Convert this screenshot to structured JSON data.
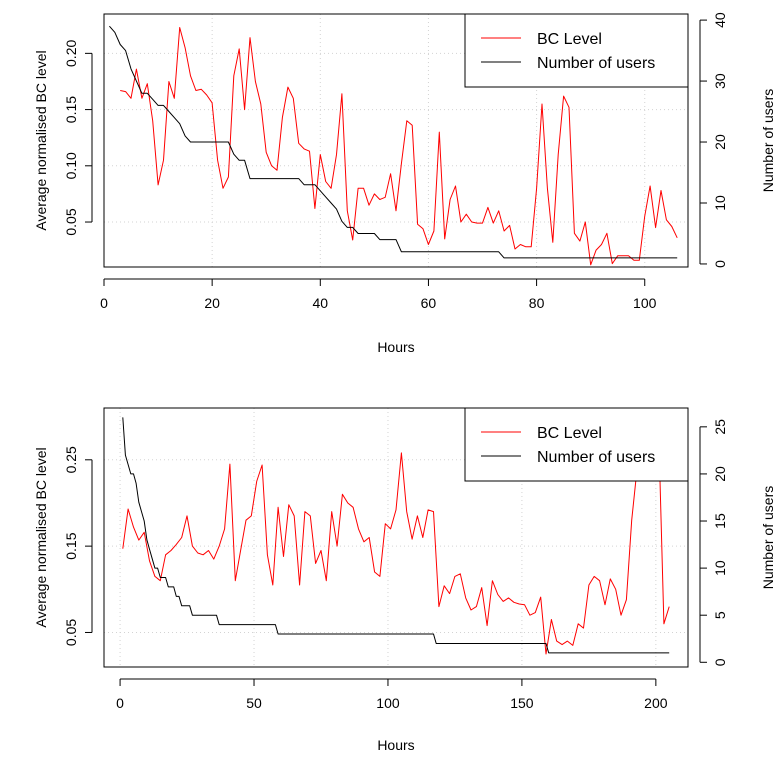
{
  "chart_data": [
    {
      "type": "line",
      "xlabel": "Hours",
      "ylabel": "Average normalised BC level",
      "y2label": "Number of users",
      "xlim": [
        0,
        108
      ],
      "ylim": [
        0.01,
        0.235
      ],
      "y2lim": [
        -0.5,
        41
      ],
      "xticks": [
        0,
        20,
        40,
        60,
        80,
        100
      ],
      "yticks": [
        0.05,
        0.1,
        0.15,
        0.2
      ],
      "ytick_labels": [
        "0.05",
        "0.10",
        "0.15",
        "0.20"
      ],
      "y2ticks": [
        0,
        10,
        20,
        30,
        40
      ],
      "grid": true,
      "legend_position": "top-right",
      "series": [
        {
          "name": "BC Level",
          "axis": "left",
          "color": "#ff0000",
          "x": [
            3,
            4,
            5,
            6,
            7,
            8,
            9,
            10,
            11,
            12,
            13,
            14,
            15,
            16,
            17,
            18,
            19,
            20,
            21,
            22,
            23,
            24,
            25,
            26,
            27,
            28,
            29,
            30,
            31,
            32,
            33,
            34,
            35,
            36,
            37,
            38,
            39,
            40,
            41,
            42,
            43,
            44,
            45,
            46,
            47,
            48,
            49,
            50,
            51,
            52,
            53,
            54,
            55,
            56,
            57,
            58,
            59,
            60,
            61,
            62,
            63,
            64,
            65,
            66,
            67,
            68,
            69,
            70,
            71,
            72,
            73,
            74,
            75,
            76,
            77,
            78,
            79,
            80,
            81,
            82,
            83,
            84,
            85,
            86,
            87,
            88,
            89,
            90,
            91,
            92,
            93,
            94,
            95,
            96,
            97,
            98,
            99,
            100,
            101,
            102,
            103,
            104,
            105,
            106
          ],
          "values": [
            0.167,
            0.166,
            0.16,
            0.186,
            0.16,
            0.173,
            0.14,
            0.083,
            0.105,
            0.175,
            0.16,
            0.223,
            0.205,
            0.18,
            0.167,
            0.168,
            0.163,
            0.156,
            0.105,
            0.08,
            0.09,
            0.18,
            0.204,
            0.15,
            0.214,
            0.175,
            0.155,
            0.112,
            0.1,
            0.096,
            0.143,
            0.17,
            0.16,
            0.12,
            0.115,
            0.113,
            0.062,
            0.11,
            0.086,
            0.08,
            0.11,
            0.164,
            0.06,
            0.034,
            0.08,
            0.08,
            0.065,
            0.075,
            0.07,
            0.072,
            0.093,
            0.06,
            0.102,
            0.14,
            0.136,
            0.048,
            0.044,
            0.03,
            0.042,
            0.13,
            0.035,
            0.07,
            0.082,
            0.05,
            0.057,
            0.05,
            0.049,
            0.049,
            0.063,
            0.049,
            0.06,
            0.042,
            0.047,
            0.026,
            0.03,
            0.028,
            0.028,
            0.08,
            0.155,
            0.08,
            0.032,
            0.11,
            0.162,
            0.152,
            0.04,
            0.033,
            0.05,
            0.012,
            0.025,
            0.03,
            0.04,
            0.013,
            0.02,
            0.02,
            0.02,
            0.016,
            0.016,
            0.055,
            0.082,
            0.045,
            0.078,
            0.052,
            0.046,
            0.036
          ]
        },
        {
          "name": "Number of users",
          "axis": "right",
          "color": "#000000",
          "x": [
            1,
            2,
            3,
            4,
            5,
            6,
            7,
            8,
            9,
            10,
            11,
            12,
            13,
            14,
            15,
            16,
            17,
            18,
            19,
            20,
            21,
            22,
            23,
            24,
            25,
            26,
            27,
            28,
            29,
            30,
            31,
            32,
            33,
            34,
            35,
            36,
            37,
            38,
            39,
            40,
            41,
            42,
            43,
            44,
            45,
            46,
            47,
            48,
            49,
            50,
            51,
            52,
            53,
            54,
            55,
            56,
            57,
            58,
            59,
            60,
            61,
            62,
            63,
            64,
            65,
            66,
            67,
            68,
            69,
            70,
            71,
            72,
            73,
            74,
            75,
            76,
            77,
            78,
            79,
            80,
            81,
            82,
            83,
            84,
            85,
            86,
            87,
            88,
            89,
            90,
            91,
            92,
            93,
            94,
            95,
            96,
            97,
            98,
            99,
            100,
            101,
            102,
            103,
            104,
            105,
            106
          ],
          "values": [
            39,
            38,
            36,
            35,
            32,
            30,
            28,
            28,
            27,
            26,
            26,
            25,
            24,
            23,
            21,
            20,
            20,
            20,
            20,
            20,
            20,
            20,
            20,
            18,
            17,
            17,
            14,
            14,
            14,
            14,
            14,
            14,
            14,
            14,
            14,
            14,
            13,
            13,
            13,
            12,
            11,
            10,
            9,
            7,
            6,
            6,
            5,
            5,
            5,
            5,
            4,
            4,
            4,
            4,
            2,
            2,
            2,
            2,
            2,
            2,
            2,
            2,
            2,
            2,
            2,
            2,
            2,
            2,
            2,
            2,
            2,
            2,
            2,
            1,
            1,
            1,
            1,
            1,
            1,
            1,
            1,
            1,
            1,
            1,
            1,
            1,
            1,
            1,
            1,
            1,
            1,
            1,
            1,
            1,
            1,
            1,
            1,
            1,
            1,
            1,
            1,
            1,
            1,
            1,
            1,
            1
          ]
        }
      ]
    },
    {
      "type": "line",
      "xlabel": "Hours",
      "ylabel": "Average normalised BC level",
      "y2label": "Number of users",
      "xlim": [
        -6,
        212
      ],
      "ylim": [
        0.01,
        0.31
      ],
      "y2lim": [
        -0.5,
        27
      ],
      "xticks": [
        0,
        50,
        100,
        150,
        200
      ],
      "yticks": [
        0.05,
        0.15,
        0.25
      ],
      "ytick_labels": [
        "0.05",
        "0.15",
        "0.25"
      ],
      "y2ticks": [
        0,
        5,
        10,
        15,
        20,
        25
      ],
      "grid": true,
      "legend_position": "top-right",
      "series": [
        {
          "name": "BC Level",
          "axis": "left",
          "color": "#ff0000",
          "x": [
            1,
            3,
            5,
            7,
            9,
            11,
            13,
            15,
            17,
            19,
            21,
            23,
            25,
            27,
            29,
            31,
            33,
            35,
            37,
            39,
            41,
            43,
            45,
            47,
            49,
            51,
            53,
            55,
            57,
            59,
            61,
            63,
            65,
            67,
            69,
            71,
            73,
            75,
            77,
            79,
            81,
            83,
            85,
            87,
            89,
            91,
            93,
            95,
            97,
            99,
            101,
            103,
            105,
            107,
            109,
            111,
            113,
            115,
            117,
            119,
            121,
            123,
            125,
            127,
            129,
            131,
            133,
            135,
            137,
            139,
            141,
            143,
            145,
            147,
            149,
            151,
            153,
            155,
            157,
            159,
            161,
            163,
            165,
            167,
            169,
            171,
            173,
            175,
            177,
            179,
            181,
            183,
            185,
            187,
            189,
            191,
            193,
            195,
            197,
            199,
            201,
            203,
            205
          ],
          "values": [
            0.147,
            0.193,
            0.172,
            0.157,
            0.166,
            0.133,
            0.115,
            0.11,
            0.14,
            0.145,
            0.152,
            0.16,
            0.185,
            0.15,
            0.142,
            0.14,
            0.145,
            0.135,
            0.15,
            0.17,
            0.245,
            0.11,
            0.145,
            0.18,
            0.185,
            0.225,
            0.244,
            0.14,
            0.105,
            0.195,
            0.138,
            0.198,
            0.185,
            0.105,
            0.19,
            0.185,
            0.13,
            0.145,
            0.11,
            0.19,
            0.15,
            0.21,
            0.2,
            0.195,
            0.17,
            0.155,
            0.16,
            0.12,
            0.115,
            0.176,
            0.17,
            0.192,
            0.258,
            0.19,
            0.158,
            0.185,
            0.16,
            0.192,
            0.19,
            0.08,
            0.104,
            0.095,
            0.115,
            0.118,
            0.09,
            0.076,
            0.08,
            0.102,
            0.058,
            0.11,
            0.094,
            0.086,
            0.09,
            0.085,
            0.083,
            0.082,
            0.07,
            0.073,
            0.091,
            0.025,
            0.065,
            0.04,
            0.036,
            0.04,
            0.035,
            0.06,
            0.055,
            0.105,
            0.115,
            0.11,
            0.082,
            0.112,
            0.1,
            0.07,
            0.088,
            0.18,
            0.24,
            0.298,
            0.298,
            0.295,
            0.29,
            0.06,
            0.08
          ]
        },
        {
          "name": "Number of users",
          "axis": "right",
          "color": "#000000",
          "x": [
            1,
            2,
            3,
            4,
            5,
            6,
            7,
            8,
            9,
            10,
            11,
            12,
            13,
            14,
            15,
            16,
            17,
            18,
            19,
            20,
            21,
            22,
            23,
            24,
            25,
            26,
            27,
            28,
            29,
            30,
            31,
            32,
            33,
            34,
            35,
            36,
            37,
            38,
            39,
            40,
            41,
            42,
            43,
            44,
            45,
            46,
            47,
            48,
            49,
            50,
            51,
            52,
            53,
            54,
            55,
            56,
            57,
            58,
            59,
            60,
            61,
            62,
            63,
            64,
            65,
            66,
            67,
            68,
            69,
            70,
            71,
            72,
            73,
            74,
            75,
            76,
            77,
            78,
            79,
            80,
            81,
            82,
            83,
            84,
            85,
            86,
            87,
            88,
            89,
            90,
            91,
            92,
            93,
            94,
            95,
            96,
            97,
            98,
            99,
            100,
            101,
            102,
            103,
            104,
            105,
            106,
            107,
            108,
            109,
            110,
            111,
            112,
            113,
            114,
            115,
            116,
            117,
            118,
            119,
            120,
            121,
            122,
            123,
            124,
            125,
            126,
            127,
            128,
            129,
            130,
            131,
            132,
            133,
            134,
            135,
            136,
            137,
            138,
            139,
            140,
            141,
            142,
            143,
            144,
            145,
            146,
            147,
            148,
            149,
            150,
            151,
            152,
            153,
            154,
            155,
            156,
            157,
            158,
            159,
            160,
            161,
            162,
            163,
            164,
            165,
            166,
            167,
            168,
            169,
            170,
            171,
            172,
            173,
            174,
            175,
            176,
            177,
            178,
            179,
            180,
            181,
            182,
            183,
            184,
            185,
            186,
            187,
            188,
            189,
            190,
            191,
            192,
            193,
            194,
            195,
            196,
            197,
            198,
            199,
            200,
            201,
            202,
            203,
            204,
            205
          ],
          "values": [
            26,
            22,
            21,
            20,
            20,
            19,
            17,
            16,
            15,
            13,
            12,
            11,
            10,
            10,
            9,
            9,
            9,
            8,
            8,
            8,
            7,
            7,
            6,
            6,
            6,
            6,
            5,
            5,
            5,
            5,
            5,
            5,
            5,
            5,
            5,
            5,
            4,
            4,
            4,
            4,
            4,
            4,
            4,
            4,
            4,
            4,
            4,
            4,
            4,
            4,
            4,
            4,
            4,
            4,
            4,
            4,
            4,
            4,
            3,
            3,
            3,
            3,
            3,
            3,
            3,
            3,
            3,
            3,
            3,
            3,
            3,
            3,
            3,
            3,
            3,
            3,
            3,
            3,
            3,
            3,
            3,
            3,
            3,
            3,
            3,
            3,
            3,
            3,
            3,
            3,
            3,
            3,
            3,
            3,
            3,
            3,
            3,
            3,
            3,
            3,
            3,
            3,
            3,
            3,
            3,
            3,
            3,
            3,
            3,
            3,
            3,
            3,
            3,
            3,
            3,
            3,
            3,
            2,
            2,
            2,
            2,
            2,
            2,
            2,
            2,
            2,
            2,
            2,
            2,
            2,
            2,
            2,
            2,
            2,
            2,
            2,
            2,
            2,
            2,
            2,
            2,
            2,
            2,
            2,
            2,
            2,
            2,
            2,
            2,
            2,
            2,
            2,
            2,
            2,
            2,
            2,
            2,
            2,
            2,
            1,
            1,
            1,
            1,
            1,
            1,
            1,
            1,
            1,
            1,
            1,
            1,
            1,
            1,
            1,
            1,
            1,
            1,
            1,
            1,
            1,
            1,
            1,
            1,
            1,
            1,
            1,
            1,
            1,
            1,
            1,
            1,
            1,
            1,
            1,
            1,
            1,
            1,
            1,
            1,
            1,
            1,
            1,
            1,
            1,
            1
          ]
        }
      ]
    }
  ]
}
